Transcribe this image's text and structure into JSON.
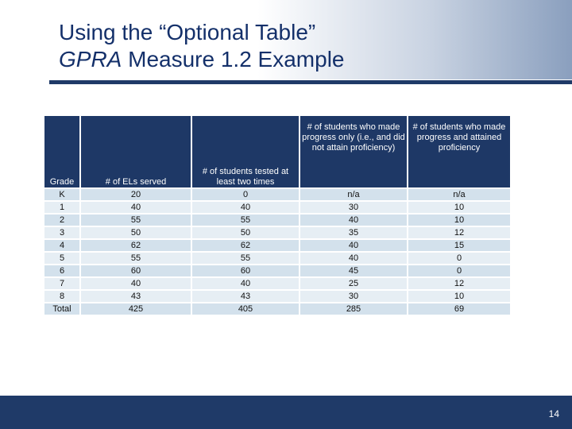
{
  "slide": {
    "title_line1": "Using the “Optional Table”",
    "title_italic": "GPRA",
    "title_line2_rest": " Measure 1.2 Example",
    "page_number": "14"
  },
  "table": {
    "headers": [
      "Grade",
      "# of ELs served",
      "# of students tested at least two times",
      "# of students who made progress only (i.e., and did not attain proficiency)",
      "# of students who made progress and attained proficiency"
    ],
    "rows": [
      [
        "K",
        "20",
        "0",
        "n/a",
        "n/a"
      ],
      [
        "1",
        "40",
        "40",
        "30",
        "10"
      ],
      [
        "2",
        "55",
        "55",
        "40",
        "10"
      ],
      [
        "3",
        "50",
        "50",
        "35",
        "12"
      ],
      [
        "4",
        "62",
        "62",
        "40",
        "15"
      ],
      [
        "5",
        "55",
        "55",
        "40",
        "0"
      ],
      [
        "6",
        "60",
        "60",
        "45",
        "0"
      ],
      [
        "7",
        "40",
        "40",
        "25",
        "12"
      ],
      [
        "8",
        "43",
        "43",
        "30",
        "10"
      ],
      [
        "Total",
        "425",
        "405",
        "285",
        "69"
      ]
    ]
  }
}
